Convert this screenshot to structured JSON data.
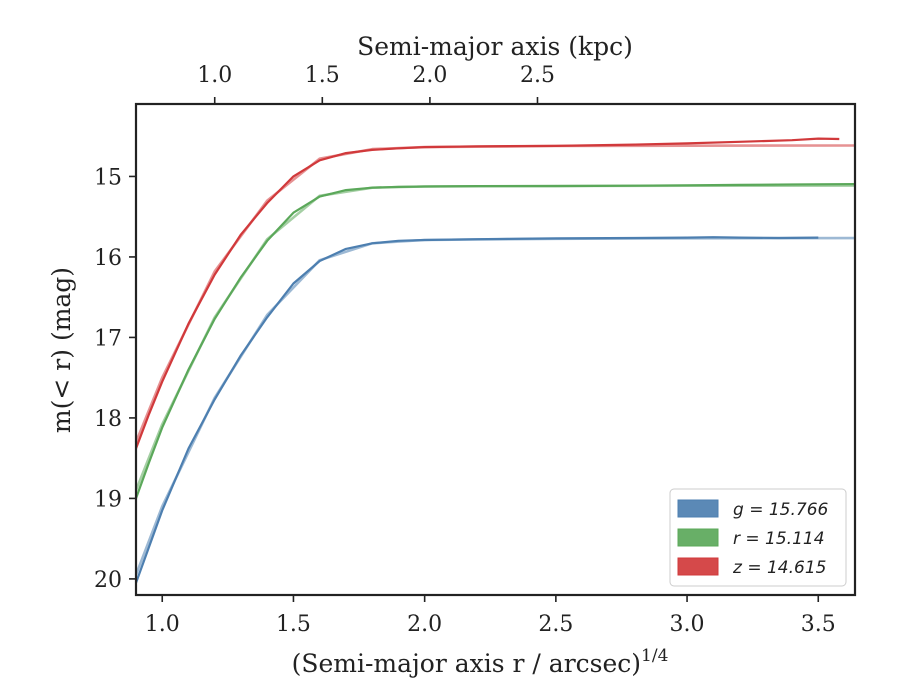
{
  "chart_data": {
    "type": "line",
    "xlabel": "(Semi-major axis r / arcsec)",
    "xlabel_exponent": "1/4",
    "ylabel": "m(< r) (mag)",
    "top_xlabel": "Semi-major axis (kpc)",
    "xlim": [
      0.9,
      3.64
    ],
    "ylim": [
      20.2,
      14.1
    ],
    "y_inverted": true,
    "grid": false,
    "legend_position": "lower-right",
    "x_ticks": [
      "1.0",
      "1.5",
      "2.0",
      "2.5",
      "3.0",
      "3.5"
    ],
    "y_ticks": [
      "15",
      "16",
      "17",
      "18",
      "19",
      "20"
    ],
    "top_x_ticks": [
      "1.0",
      "1.5",
      "2.0",
      "2.5"
    ],
    "top_x_tick_positions": [
      1.2,
      1.61,
      2.02,
      2.43
    ],
    "series": [
      {
        "name": "g = 15.766",
        "band": "g",
        "value": "15.766",
        "color": "#4d7fb0",
        "x": [
          0.9,
          0.95,
          1.0,
          1.1,
          1.2,
          1.3,
          1.4,
          1.5,
          1.6,
          1.7,
          1.8,
          1.9,
          2.0,
          2.2,
          2.5,
          2.8,
          3.0,
          3.1,
          3.2,
          3.35,
          3.5
        ],
        "y": [
          20.05,
          19.6,
          19.15,
          18.38,
          17.77,
          17.22,
          16.75,
          16.33,
          16.05,
          15.9,
          15.83,
          15.8,
          15.79,
          15.78,
          15.77,
          15.765,
          15.76,
          15.755,
          15.76,
          15.765,
          15.76
        ],
        "model_x": [
          0.9,
          1.0,
          1.2,
          1.4,
          1.6,
          1.8,
          2.0,
          2.5,
          3.0,
          3.64
        ],
        "model_y": [
          19.95,
          19.1,
          17.75,
          16.72,
          16.04,
          15.83,
          15.79,
          15.775,
          15.768,
          15.766
        ]
      },
      {
        "name": "r = 15.114",
        "band": "r",
        "value": "15.114",
        "color": "#5ba85a",
        "x": [
          0.9,
          0.95,
          1.0,
          1.1,
          1.2,
          1.3,
          1.4,
          1.5,
          1.6,
          1.7,
          1.8,
          1.9,
          2.0,
          2.2,
          2.5,
          2.8,
          3.0,
          3.2,
          3.4,
          3.64
        ],
        "y": [
          19.0,
          18.55,
          18.12,
          17.4,
          16.77,
          16.25,
          15.8,
          15.45,
          15.25,
          15.17,
          15.14,
          15.13,
          15.125,
          15.12,
          15.12,
          15.115,
          15.11,
          15.105,
          15.1,
          15.095
        ],
        "model_x": [
          0.9,
          1.0,
          1.2,
          1.4,
          1.6,
          1.8,
          2.0,
          2.5,
          3.0,
          3.64
        ],
        "model_y": [
          18.9,
          18.08,
          16.75,
          15.78,
          15.24,
          15.14,
          15.125,
          15.118,
          15.115,
          15.114
        ]
      },
      {
        "name": "z = 14.615",
        "band": "z",
        "value": "14.615",
        "color": "#d1393b",
        "x": [
          0.9,
          0.95,
          1.0,
          1.1,
          1.2,
          1.3,
          1.4,
          1.5,
          1.6,
          1.7,
          1.8,
          1.9,
          2.0,
          2.2,
          2.5,
          2.8,
          3.0,
          3.2,
          3.4,
          3.5,
          3.58
        ],
        "y": [
          18.38,
          17.95,
          17.55,
          16.83,
          16.22,
          15.72,
          15.33,
          15.0,
          14.8,
          14.71,
          14.67,
          14.65,
          14.635,
          14.625,
          14.62,
          14.605,
          14.59,
          14.57,
          14.55,
          14.53,
          14.535
        ],
        "model_x": [
          0.9,
          1.0,
          1.2,
          1.4,
          1.6,
          1.8,
          2.0,
          2.5,
          3.0,
          3.64
        ],
        "model_y": [
          18.3,
          17.5,
          16.18,
          15.3,
          14.78,
          14.66,
          14.635,
          14.622,
          14.618,
          14.615
        ]
      }
    ]
  }
}
